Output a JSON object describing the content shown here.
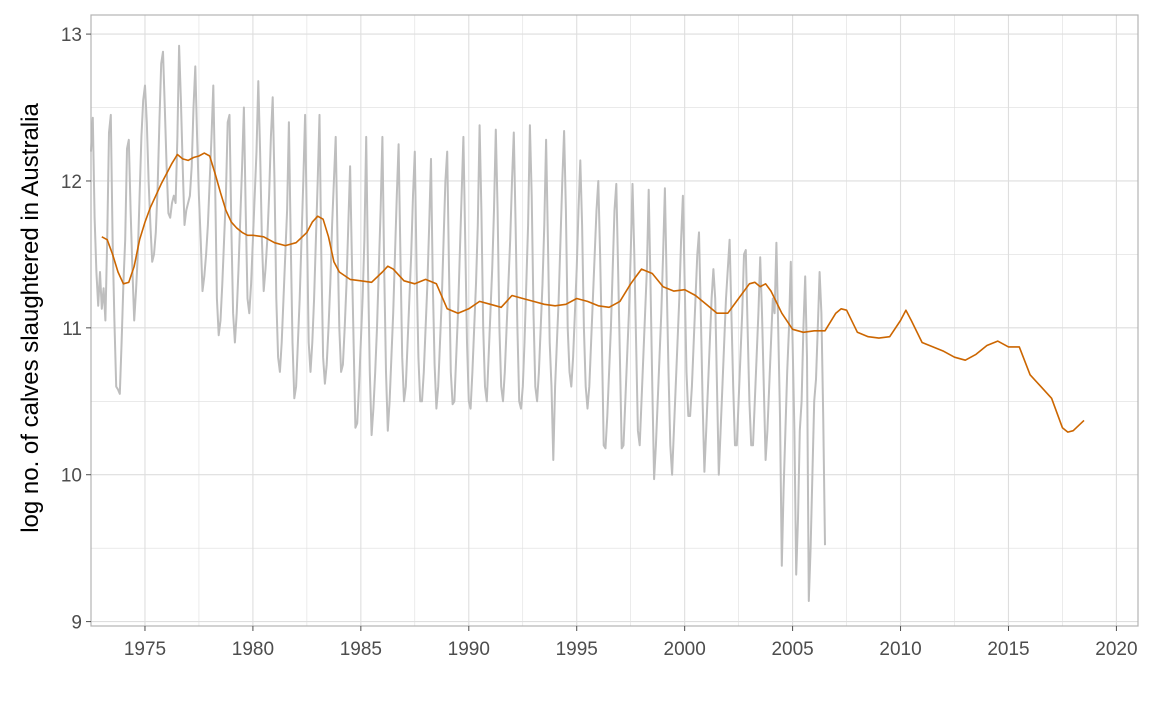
{
  "chart_data": {
    "type": "line",
    "title": "",
    "xlabel": "",
    "ylabel": "log no. of calves slaughtered in Australia",
    "xlim": [
      1972.5,
      2021.0
    ],
    "ylim": [
      8.97,
      13.13
    ],
    "x_ticks": [
      1975,
      1980,
      1985,
      1990,
      1995,
      2000,
      2005,
      2010,
      2015,
      2020
    ],
    "x_tick_labels": [
      "1975",
      "1980",
      "1985",
      "1990",
      "1995",
      "2000",
      "2005",
      "2010",
      "2015",
      "2020"
    ],
    "y_ticks": [
      9,
      10,
      11,
      12,
      13
    ],
    "y_tick_labels": [
      "9",
      "10",
      "11",
      "12",
      "13"
    ],
    "grid": true,
    "legend": "none",
    "colors": {
      "raw": "#bebebe",
      "trend": "#cc6600",
      "grid": "#dedede",
      "border": "#b3b3b3"
    },
    "raw_series": {
      "start_year": 1972.5,
      "step_years": 0.083333,
      "values": [
        12.2,
        12.43,
        11.75,
        11.38,
        11.15,
        11.38,
        11.13,
        11.27,
        11.05,
        11.6,
        12.33,
        12.45,
        11.6,
        11.05,
        10.6,
        10.58,
        10.55,
        10.9,
        11.3,
        11.6,
        12.22,
        12.28,
        11.8,
        11.4,
        11.05,
        11.25,
        11.5,
        11.9,
        12.3,
        12.55,
        12.65,
        12.4,
        12.0,
        11.7,
        11.45,
        11.5,
        11.65,
        11.95,
        12.4,
        12.8,
        12.88,
        12.5,
        12.1,
        11.78,
        11.75,
        11.85,
        11.9,
        11.85,
        12.3,
        12.92,
        12.55,
        12.1,
        11.7,
        11.8,
        11.85,
        11.9,
        12.1,
        12.5,
        12.78,
        12.3,
        11.9,
        11.6,
        11.25,
        11.35,
        11.5,
        11.7,
        12.0,
        12.3,
        12.65,
        12.0,
        11.2,
        10.95,
        11.05,
        11.3,
        11.6,
        11.9,
        12.4,
        12.45,
        11.7,
        11.1,
        10.9,
        11.1,
        11.4,
        11.75,
        12.1,
        12.5,
        11.8,
        11.2,
        11.1,
        11.3,
        11.6,
        11.9,
        12.2,
        12.68,
        12.2,
        11.6,
        11.25,
        11.4,
        11.6,
        11.9,
        12.3,
        12.57,
        12.0,
        11.2,
        10.8,
        10.7,
        10.9,
        11.2,
        11.5,
        11.8,
        12.4,
        11.6,
        10.9,
        10.52,
        10.6,
        10.9,
        11.2,
        11.6,
        12.0,
        12.45,
        11.7,
        10.9,
        10.7,
        10.9,
        11.2,
        11.6,
        12.0,
        12.45,
        11.5,
        10.8,
        10.62,
        10.75,
        11.0,
        11.3,
        11.7,
        12.0,
        12.3,
        11.6,
        11.0,
        10.7,
        10.75,
        11.0,
        11.3,
        11.7,
        12.1,
        11.5,
        10.9,
        10.32,
        10.35,
        10.6,
        10.9,
        11.2,
        11.6,
        12.3,
        11.4,
        10.7,
        10.27,
        10.45,
        10.7,
        11.0,
        11.4,
        11.8,
        12.3,
        11.4,
        10.7,
        10.3,
        10.5,
        10.8,
        11.1,
        11.5,
        11.9,
        12.25,
        11.5,
        10.8,
        10.5,
        10.6,
        10.9,
        11.2,
        11.5,
        11.9,
        12.2,
        11.4,
        10.8,
        10.5,
        10.5,
        10.7,
        11.0,
        11.3,
        11.7,
        12.15,
        11.3,
        10.75,
        10.45,
        10.6,
        10.9,
        11.2,
        11.6,
        12.0,
        12.2,
        11.4,
        10.7,
        10.48,
        10.5,
        10.8,
        11.1,
        11.5,
        11.9,
        12.3,
        11.6,
        10.9,
        10.5,
        10.45,
        10.7,
        11.0,
        11.3,
        11.7,
        12.38,
        11.8,
        11.0,
        10.6,
        10.5,
        10.8,
        11.1,
        11.4,
        11.8,
        12.35,
        11.8,
        11.0,
        10.6,
        10.5,
        10.7,
        11.0,
        11.3,
        11.6,
        12.0,
        12.33,
        11.7,
        11.0,
        10.5,
        10.45,
        10.6,
        10.9,
        11.3,
        11.7,
        12.38,
        11.9,
        11.1,
        10.6,
        10.5,
        10.7,
        11.0,
        11.3,
        11.7,
        12.28,
        11.6,
        10.9,
        10.6,
        10.1,
        10.6,
        10.9,
        11.2,
        11.6,
        12.0,
        12.34,
        11.8,
        11.0,
        10.7,
        10.6,
        10.8,
        11.1,
        11.4,
        11.8,
        12.14,
        11.7,
        11.0,
        10.6,
        10.45,
        10.6,
        10.9,
        11.2,
        11.5,
        11.8,
        12.0,
        11.5,
        10.9,
        10.2,
        10.18,
        10.4,
        10.7,
        11.0,
        11.4,
        11.8,
        11.98,
        11.4,
        10.8,
        10.18,
        10.2,
        10.5,
        10.8,
        11.1,
        11.5,
        11.98,
        11.5,
        10.9,
        10.3,
        10.2,
        10.5,
        10.8,
        11.1,
        11.4,
        11.94,
        11.3,
        10.6,
        9.97,
        10.2,
        10.5,
        10.8,
        11.1,
        11.5,
        11.95,
        11.3,
        10.7,
        10.2,
        10.0,
        10.3,
        10.6,
        10.9,
        11.2,
        11.6,
        11.9,
        11.3,
        10.7,
        10.4,
        10.4,
        10.6,
        10.9,
        11.2,
        11.5,
        11.65,
        11.1,
        10.5,
        10.02,
        10.3,
        10.6,
        10.9,
        11.2,
        11.4,
        11.2,
        10.6,
        10.0,
        10.3,
        10.6,
        10.9,
        11.2,
        11.4,
        11.6,
        11.1,
        10.6,
        10.2,
        10.2,
        10.5,
        10.8,
        11.1,
        11.5,
        11.53,
        11.0,
        10.5,
        10.2,
        10.2,
        10.5,
        10.8,
        11.1,
        11.48,
        11.1,
        10.6,
        10.1,
        10.3,
        10.6,
        10.9,
        11.2,
        11.1,
        11.58,
        11.0,
        10.4,
        9.38,
        9.9,
        10.3,
        10.7,
        11.0,
        11.45,
        10.9,
        10.3,
        9.32,
        9.7,
        10.3,
        10.5,
        11.0,
        11.35,
        10.8,
        9.14,
        9.5,
        10.0,
        10.5,
        10.65,
        11.0,
        11.38,
        11.1,
        10.4,
        9.52
      ]
    },
    "trend_series": {
      "x": [
        1973.0,
        1973.25,
        1973.5,
        1973.75,
        1974.0,
        1974.25,
        1974.5,
        1974.75,
        1975.0,
        1975.25,
        1975.5,
        1975.75,
        1976.0,
        1976.25,
        1976.5,
        1976.75,
        1977.0,
        1977.25,
        1977.5,
        1977.75,
        1978.0,
        1978.25,
        1978.5,
        1978.75,
        1979.0,
        1979.25,
        1979.5,
        1979.75,
        1980.0,
        1980.5,
        1981.0,
        1981.5,
        1982.0,
        1982.5,
        1982.75,
        1983.0,
        1983.25,
        1983.5,
        1983.75,
        1984.0,
        1984.5,
        1985.0,
        1985.5,
        1986.0,
        1986.25,
        1986.5,
        1987.0,
        1987.5,
        1988.0,
        1988.5,
        1989.0,
        1989.5,
        1990.0,
        1990.5,
        1991.0,
        1991.5,
        1992.0,
        1992.5,
        1993.0,
        1993.5,
        1994.0,
        1994.5,
        1995.0,
        1995.5,
        1996.0,
        1996.5,
        1997.0,
        1997.5,
        1997.75,
        1998.0,
        1998.5,
        1999.0,
        1999.5,
        2000.0,
        2000.5,
        2001.0,
        2001.5,
        2002.0,
        2002.5,
        2003.0,
        2003.25,
        2003.5,
        2003.75,
        2004.0,
        2004.5,
        2005.0,
        2005.5,
        2006.0,
        2006.5,
        2007.0,
        2007.25,
        2007.5,
        2008.0,
        2008.5,
        2009.0,
        2009.5,
        2010.0,
        2010.25,
        2010.5,
        2011.0,
        2011.5,
        2012.0,
        2012.5,
        2013.0,
        2013.5,
        2014.0,
        2014.5,
        2015.0,
        2015.5,
        2016.0,
        2016.5,
        2017.0,
        2017.5,
        2017.75,
        2018.0,
        2018.5
      ],
      "values": [
        11.62,
        11.6,
        11.5,
        11.38,
        11.3,
        11.31,
        11.42,
        11.6,
        11.72,
        11.82,
        11.9,
        11.98,
        12.05,
        12.12,
        12.18,
        12.15,
        12.14,
        12.16,
        12.17,
        12.19,
        12.17,
        12.05,
        11.92,
        11.8,
        11.72,
        11.68,
        11.65,
        11.63,
        11.63,
        11.62,
        11.58,
        11.56,
        11.58,
        11.65,
        11.72,
        11.76,
        11.74,
        11.62,
        11.45,
        11.38,
        11.33,
        11.32,
        11.31,
        11.38,
        11.42,
        11.4,
        11.32,
        11.3,
        11.33,
        11.3,
        11.13,
        11.1,
        11.13,
        11.18,
        11.16,
        11.14,
        11.22,
        11.2,
        11.18,
        11.16,
        11.15,
        11.16,
        11.2,
        11.18,
        11.15,
        11.14,
        11.18,
        11.3,
        11.35,
        11.4,
        11.37,
        11.28,
        11.25,
        11.26,
        11.22,
        11.16,
        11.1,
        11.1,
        11.2,
        11.3,
        11.31,
        11.28,
        11.3,
        11.25,
        11.1,
        10.99,
        10.97,
        10.98,
        10.98,
        11.1,
        11.13,
        11.12,
        10.97,
        10.94,
        10.93,
        10.94,
        11.05,
        11.12,
        11.05,
        10.9,
        10.87,
        10.84,
        10.8,
        10.78,
        10.82,
        10.88,
        10.91,
        10.87,
        10.87,
        10.68,
        10.6,
        10.52,
        10.32,
        10.29,
        10.3,
        10.37
      ]
    }
  }
}
